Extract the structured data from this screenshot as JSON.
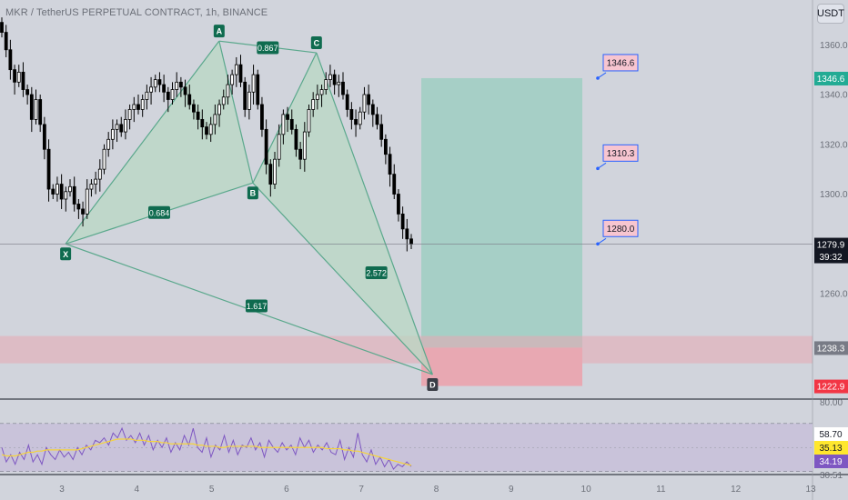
{
  "header": {
    "title": "MKR / TetherUS PERPETUAL CONTRACT, 1h, BINANCE",
    "currency_button": "USDT"
  },
  "chart_data": [
    {
      "type": "candlestick",
      "symbol": "MKR / TetherUS PERPETUAL CONTRACT",
      "interval": "1h",
      "exchange": "BINANCE",
      "ylim": [
        1218,
        1378
      ],
      "y_ticks": [
        1360.0,
        1340.0,
        1320.0,
        1300.0,
        1260.0
      ],
      "x_ticks": [
        "3",
        "4",
        "5",
        "6",
        "7",
        "8",
        "9",
        "10",
        "11",
        "12",
        "13"
      ],
      "x_ticks_pos": [
        3,
        4,
        5,
        6,
        7,
        8,
        9,
        10,
        11,
        12,
        13
      ],
      "last_price": 1279.9,
      "countdown": "39:32",
      "candles_close_series": [
        1365,
        1358,
        1350,
        1345,
        1349,
        1342,
        1340,
        1330,
        1338,
        1328,
        1318,
        1302,
        1300,
        1304,
        1298,
        1301,
        1303,
        1296,
        1294,
        1292,
        1302,
        1304,
        1306,
        1310,
        1318,
        1322,
        1326,
        1328,
        1325,
        1330,
        1334,
        1336,
        1334,
        1338,
        1341,
        1343,
        1346,
        1344,
        1341,
        1338,
        1342,
        1345,
        1343,
        1340,
        1336,
        1333,
        1330,
        1327,
        1324,
        1328,
        1332,
        1336,
        1339,
        1344,
        1348,
        1352,
        1345,
        1334,
        1341,
        1348,
        1336,
        1326,
        1312,
        1304,
        1314,
        1324,
        1332,
        1330,
        1326,
        1318,
        1314,
        1325,
        1334,
        1338,
        1340,
        1342,
        1346,
        1348,
        1344,
        1345,
        1340,
        1334,
        1330,
        1328,
        1333,
        1340,
        1336,
        1332,
        1328,
        1322,
        1316,
        1308,
        1300,
        1292,
        1286,
        1282,
        1279.9
      ],
      "harmonic_pattern": {
        "points": [
          {
            "label": "X",
            "t": 3.05,
            "price": 1280.0
          },
          {
            "label": "A",
            "t": 5.1,
            "price": 1361.5
          },
          {
            "label": "B",
            "t": 5.55,
            "price": 1304.5
          },
          {
            "label": "C",
            "t": 6.4,
            "price": 1356.8
          },
          {
            "label": "D",
            "t": 7.95,
            "price": 1227.5
          }
        ],
        "ratios": [
          {
            "value": "0.867",
            "t": 5.75,
            "price": 1358.8
          },
          {
            "value": "0.684",
            "t": 4.3,
            "price": 1292.6
          },
          {
            "value": "2.572",
            "t": 7.2,
            "price": 1268.4
          },
          {
            "value": "1.617",
            "t": 5.6,
            "price": 1255.1
          }
        ]
      },
      "position_tool": {
        "entry": 1238.3,
        "stop": 1222.9,
        "target": 1346.6,
        "t_start": 7.8,
        "t_end": 9.95
      },
      "targets": [
        {
          "label": "1346.6",
          "price": 1346.6
        },
        {
          "label": "1310.3",
          "price": 1310.3
        },
        {
          "label": "1280.0",
          "price": 1280.0
        }
      ],
      "axis_labels": [
        {
          "value": "1346.6",
          "price": 1346.6,
          "bg": "#22ab94"
        },
        {
          "value": "1279.9",
          "price": 1279.9,
          "bg": "#131722"
        },
        {
          "value": "1238.3",
          "price": 1238.3,
          "bg": "#787b86"
        },
        {
          "value": "1222.9",
          "price": 1222.9,
          "bg": "#f23645"
        }
      ]
    },
    {
      "type": "line",
      "name": "RSI",
      "ylim": [
        29,
        88
      ],
      "levels": [
        70,
        30
      ],
      "y_ticks": [
        "80.00",
        "30.51"
      ],
      "axis_labels": [
        {
          "value": "58.70",
          "bg": "#ffffff",
          "color": "#131722",
          "level": 58.7
        },
        {
          "value": "35.13",
          "bg": "#ffe72e",
          "color": "#131722",
          "level": 35.13
        },
        {
          "value": "34.19",
          "bg": "#7e57c2",
          "color": "#ffffff",
          "level": 34.19
        }
      ],
      "rsi_series": [
        50,
        38,
        44,
        36,
        46,
        40,
        52,
        38,
        44,
        36,
        50,
        44,
        40,
        48,
        42,
        46,
        40,
        50,
        44,
        52,
        48,
        56,
        54,
        58,
        52,
        62,
        58,
        66,
        56,
        60,
        54,
        62,
        52,
        60,
        48,
        56,
        50,
        58,
        46,
        54,
        48,
        60,
        52,
        66,
        50,
        46,
        58,
        42,
        52,
        48,
        60,
        46,
        56,
        44,
        52,
        50,
        58,
        48,
        54,
        42,
        56,
        50,
        46,
        54,
        48,
        52,
        44,
        58,
        50,
        56,
        46,
        52,
        48,
        54,
        46,
        44,
        56,
        40,
        50,
        42,
        62,
        44,
        38,
        48,
        36,
        42,
        34,
        40,
        32,
        36,
        34,
        38,
        34.19
      ],
      "ma_series": [
        44,
        43,
        43,
        43,
        44,
        45,
        46,
        46,
        47,
        47,
        48,
        48,
        48,
        48,
        48,
        48,
        48,
        48,
        49,
        50,
        51,
        52,
        53,
        54,
        55,
        56,
        57,
        57,
        57,
        57,
        56,
        56,
        56,
        55,
        55,
        55,
        54,
        54,
        53,
        53,
        53,
        53,
        53,
        53,
        52,
        52,
        51,
        51,
        51,
        50,
        50,
        51,
        51,
        51,
        51,
        51,
        51,
        51,
        50,
        50,
        50,
        50,
        50,
        50,
        50,
        50,
        50,
        50,
        50,
        50,
        50,
        50,
        50,
        49,
        49,
        49,
        49,
        48,
        48,
        47,
        47,
        46,
        45,
        44,
        43,
        42,
        41,
        40,
        39,
        38,
        37,
        36,
        35.13
      ]
    }
  ],
  "colors": {
    "background": "#d1d4dc",
    "candle_up": "#ffffff",
    "candle_down": "#000000",
    "pattern_fill": "#b8d8c2",
    "pattern_line": "#5aa88c",
    "profit_zone": "#a6cfc6",
    "stop_zone": "#e8a8b2",
    "target_box": "#f7c5d0",
    "rsi_band": "#c9c3da",
    "rsi_line": "#7e57c2",
    "rsi_ma": "#f5d33a"
  }
}
